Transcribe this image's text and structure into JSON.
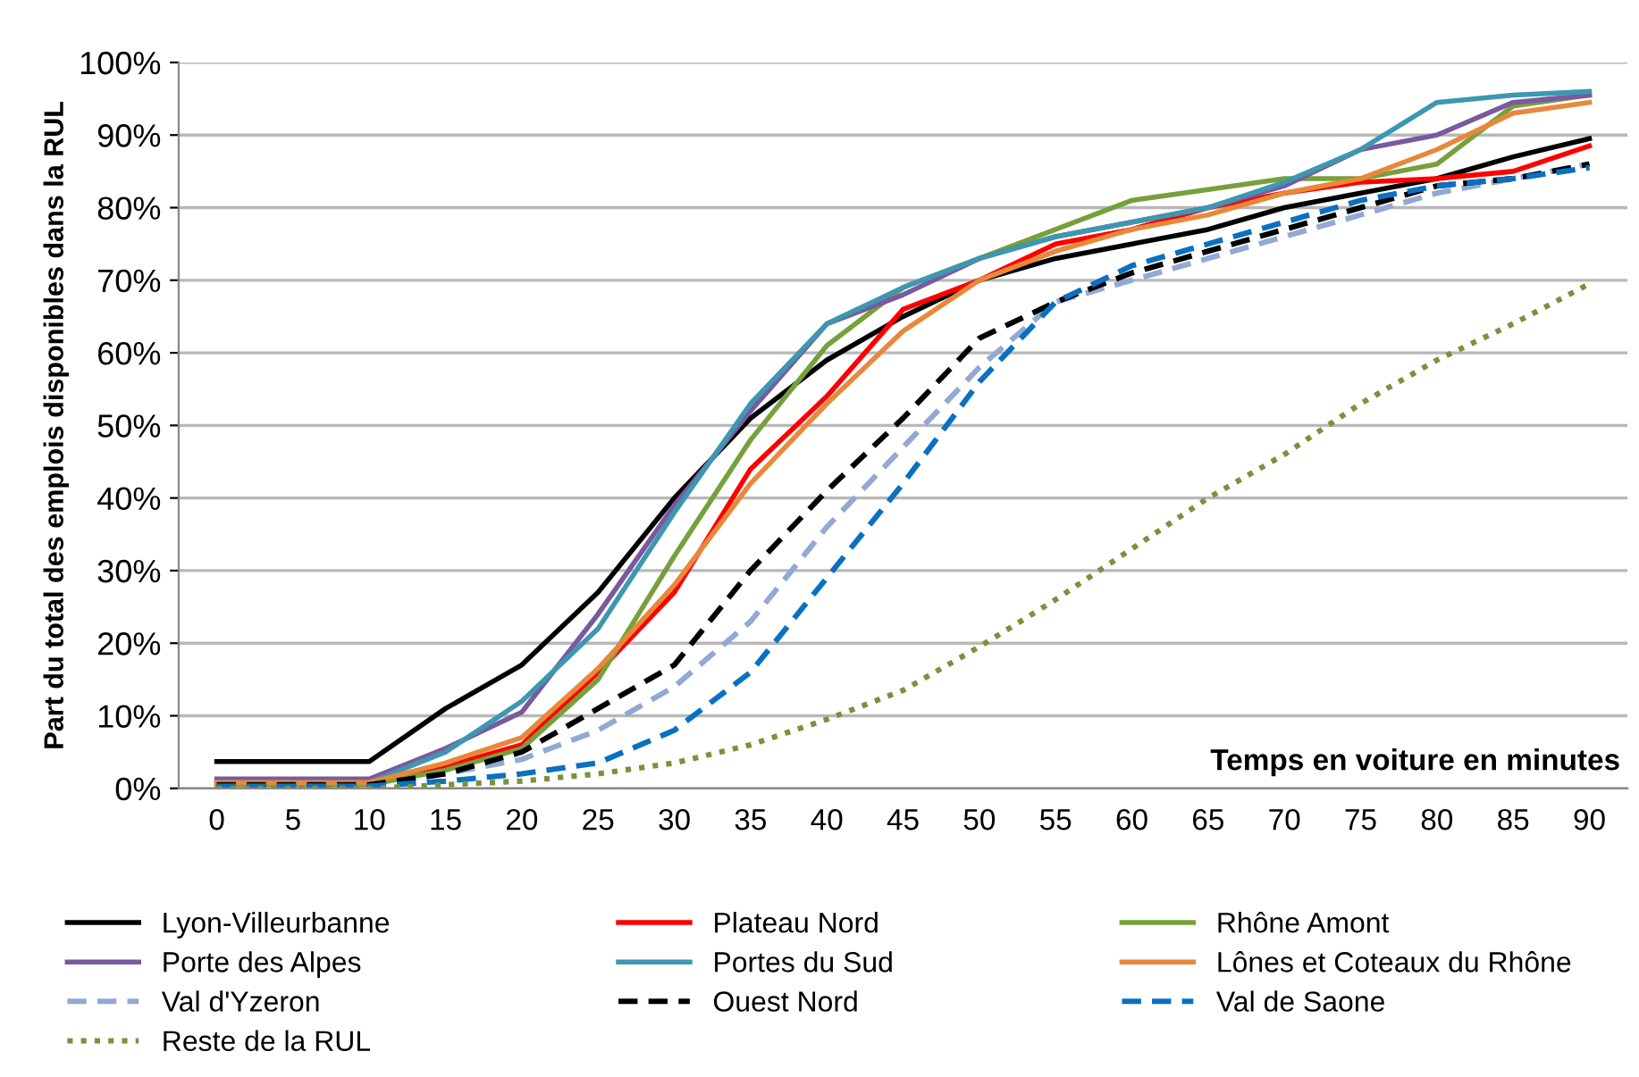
{
  "chart_data": {
    "type": "line",
    "ylabel": "Part du total des emplois disponibles dans la RUL",
    "xlabel": "Temps en voiture en minutes",
    "categories": [
      "0",
      "5",
      "10",
      "15",
      "20",
      "25",
      "30",
      "35",
      "40",
      "45",
      "50",
      "55",
      "60",
      "65",
      "70",
      "75",
      "80",
      "85",
      "90"
    ],
    "ylim": [
      0,
      100
    ],
    "yticks": [
      {
        "value": 0,
        "label": "0%"
      },
      {
        "value": 10,
        "label": "10%"
      },
      {
        "value": 20,
        "label": "20%"
      },
      {
        "value": 30,
        "label": "30%"
      },
      {
        "value": 40,
        "label": "40%"
      },
      {
        "value": 50,
        "label": "50%"
      },
      {
        "value": 60,
        "label": "60%"
      },
      {
        "value": 70,
        "label": "70%"
      },
      {
        "value": 80,
        "label": "80%"
      },
      {
        "value": 90,
        "label": "90%"
      },
      {
        "value": 100,
        "label": "100%"
      }
    ],
    "grid": "y",
    "legend": "bottom",
    "marker": "none",
    "series": [
      {
        "name": "Lyon-Villeurbanne",
        "color": "#000000",
        "line_style": "solid",
        "values": [
          3.7,
          3.7,
          3.7,
          11,
          17,
          27,
          40,
          51,
          59,
          65,
          70,
          73,
          75,
          77,
          80,
          82,
          84,
          87,
          89.5
        ]
      },
      {
        "name": "Plateau Nord",
        "color": "#ff0000",
        "line_style": "solid",
        "values": [
          null,
          null,
          0.5,
          3,
          6,
          16,
          27,
          44,
          54,
          66,
          70,
          75,
          77,
          80,
          82,
          83.5,
          84,
          85,
          88.5
        ]
      },
      {
        "name": "Rhône Amont",
        "color": "#77a03c",
        "line_style": "solid",
        "values": [
          0.5,
          0.5,
          0.5,
          2.5,
          5.5,
          15,
          32,
          48,
          61,
          69,
          73,
          77,
          81,
          82.5,
          84,
          84,
          86,
          94,
          95.5
        ]
      },
      {
        "name": "Porte des Alpes",
        "color": "#7a5a9e",
        "line_style": "solid",
        "values": [
          1.3,
          1.3,
          1.3,
          5.5,
          10.5,
          24,
          39,
          52,
          64,
          68,
          73,
          76,
          78,
          80,
          83,
          88,
          90,
          94.5,
          95.5
        ]
      },
      {
        "name": "Portes du Sud",
        "color": "#3d97b1",
        "line_style": "solid",
        "values": [
          0.8,
          0.8,
          0.8,
          5,
          12,
          22,
          38,
          53,
          64,
          69,
          73,
          76,
          78,
          80,
          83.5,
          88,
          94.5,
          95.5,
          96
        ]
      },
      {
        "name": "Lônes et Coteaux du Rhône",
        "color": "#e8883a",
        "line_style": "solid",
        "values": [
          0.8,
          0.8,
          0.8,
          3.5,
          7,
          16.5,
          28,
          42,
          53,
          63,
          70,
          74,
          77,
          79,
          82,
          84,
          88,
          93,
          94.5
        ]
      },
      {
        "name": "Val d'Yzeron",
        "color": "#93a9d4",
        "line_style": "dashed",
        "values": [
          0.3,
          0.3,
          0.3,
          2,
          4,
          8,
          14,
          23,
          36,
          47,
          58,
          67,
          70,
          73,
          76,
          79,
          82,
          84,
          86
        ]
      },
      {
        "name": "Ouest Nord",
        "color": "#000000",
        "line_style": "dashed",
        "values": [
          0.5,
          0.5,
          0.5,
          2,
          5,
          11,
          17,
          30,
          41,
          51,
          62,
          67,
          71,
          74,
          77,
          80,
          83,
          84,
          86
        ]
      },
      {
        "name": "Val de Saone",
        "color": "#0a70c0",
        "line_style": "dashed",
        "values": [
          0.3,
          0.3,
          0.3,
          1,
          2,
          3.5,
          8,
          16,
          29,
          42,
          56,
          67,
          72,
          75,
          78,
          81,
          83,
          84,
          85.5
        ]
      },
      {
        "name": "Reste de la RUL",
        "color": "#77933c",
        "line_style": "dotted",
        "values": [
          0,
          0,
          0,
          0.5,
          1,
          2,
          3.5,
          6,
          9.5,
          13.5,
          19.5,
          26,
          33,
          40,
          46,
          53,
          59,
          64,
          69.5
        ]
      }
    ]
  }
}
